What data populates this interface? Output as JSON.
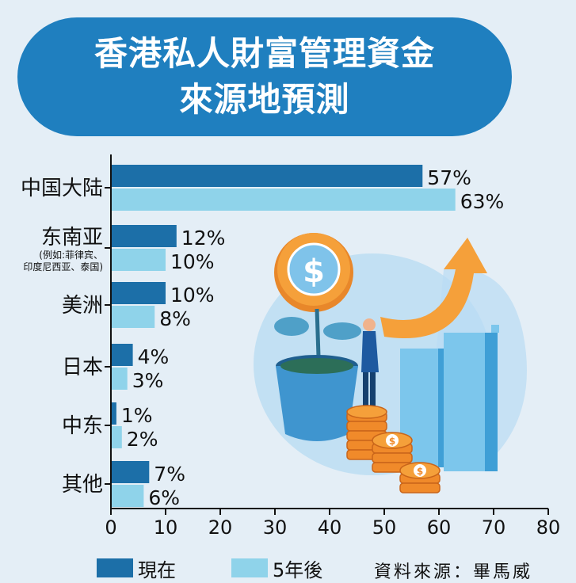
{
  "title": {
    "line1": "香港私人財富管理資金",
    "line2": "來源地預測"
  },
  "chart_data": {
    "type": "bar",
    "orientation": "horizontal",
    "categories": [
      {
        "name": "中国大陆",
        "note": ""
      },
      {
        "name": "东南亚",
        "note": "(例如:菲律宾、印度尼西亚、泰国)"
      },
      {
        "name": "美洲",
        "note": ""
      },
      {
        "name": "日本",
        "note": ""
      },
      {
        "name": "中东",
        "note": ""
      },
      {
        "name": "其他",
        "note": ""
      }
    ],
    "series": [
      {
        "name": "現在",
        "values": [
          57,
          12,
          10,
          4,
          1,
          7
        ],
        "labels": [
          "57%",
          "12%",
          "10%",
          "4%",
          "1%",
          "7%"
        ],
        "color": "#1c6fa8"
      },
      {
        "name": "5年後",
        "values": [
          63,
          10,
          8,
          3,
          2,
          6
        ],
        "labels": [
          "63%",
          "10%",
          "8%",
          "3%",
          "2%",
          "6%"
        ],
        "color": "#8fd3ea"
      }
    ],
    "xlim": [
      0,
      80
    ],
    "xticks": [
      0,
      10,
      20,
      30,
      40,
      50,
      60,
      70,
      80
    ],
    "legend": "bottom",
    "grid": false
  },
  "source": "資料來源：畢馬威",
  "colors": {
    "title_bg": "#1f7fbf",
    "background": "#e4eef6",
    "axis": "#111111"
  },
  "illustration": "money-growth-illustration"
}
